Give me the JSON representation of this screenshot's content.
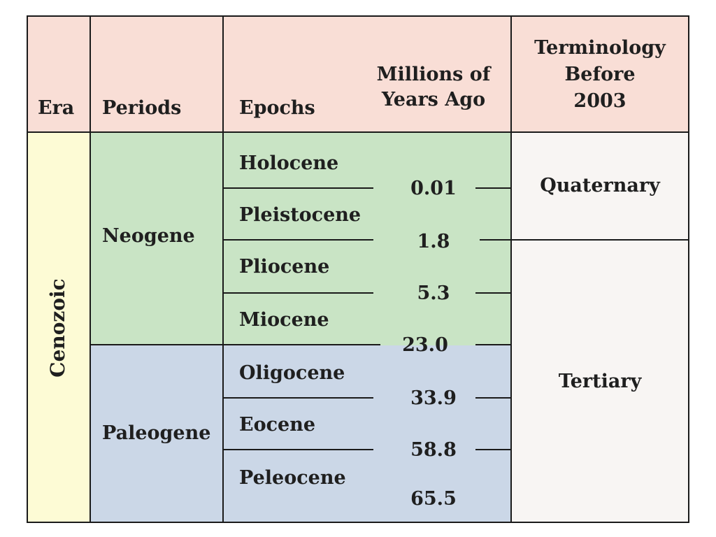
{
  "headers": {
    "era": "Era",
    "periods": "Periods",
    "epochs": "Epochs",
    "mya_line1": "Millions of",
    "mya_line2": "Years Ago",
    "term_line1": "Terminology",
    "term_line2": "Before",
    "term_line3": "2003"
  },
  "era": {
    "label": "Cenozoic"
  },
  "periods": [
    {
      "label": "Neogene"
    },
    {
      "label": "Paleogene"
    }
  ],
  "epochs": [
    {
      "label": "Holocene"
    },
    {
      "label": "Pleistocene"
    },
    {
      "label": "Pliocene"
    },
    {
      "label": "Miocene"
    },
    {
      "label": "Oligocene"
    },
    {
      "label": "Eocene"
    },
    {
      "label": "Peleocene"
    }
  ],
  "boundaries_mya": [
    "0.01",
    "1.8",
    "5.3",
    "23.0",
    "33.9",
    "58.8",
    "65.5"
  ],
  "terminology": [
    {
      "label": "Quaternary"
    },
    {
      "label": "Tertiary"
    }
  ],
  "colors": {
    "header_bg": "#f9ded6",
    "era_bg": "#fdfbd5",
    "neogene_bg": "#c9e4c5",
    "paleogene_bg": "#cbd7e7",
    "terminology_bg": "#f8f5f3",
    "border": "#1a1a1a"
  }
}
